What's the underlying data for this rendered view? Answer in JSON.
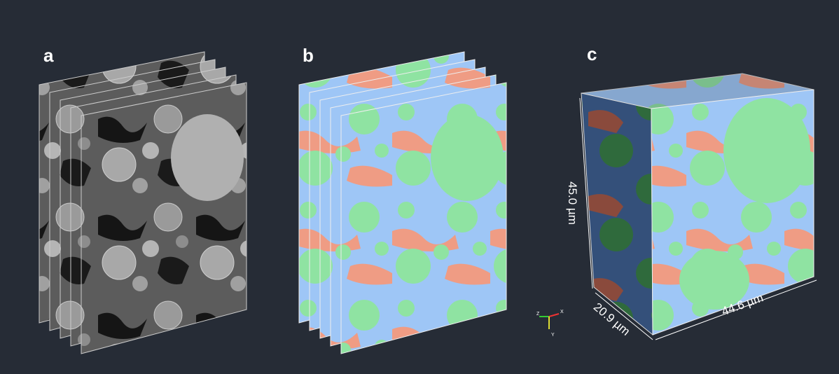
{
  "panels": {
    "a": "a",
    "b": "b",
    "c": "c"
  },
  "dimensions": {
    "height": "45.0 µm",
    "depth": "20.9 µm",
    "width": "44.6 µm"
  },
  "axes": {
    "z": "Z",
    "x": "X",
    "y": "Y"
  }
}
